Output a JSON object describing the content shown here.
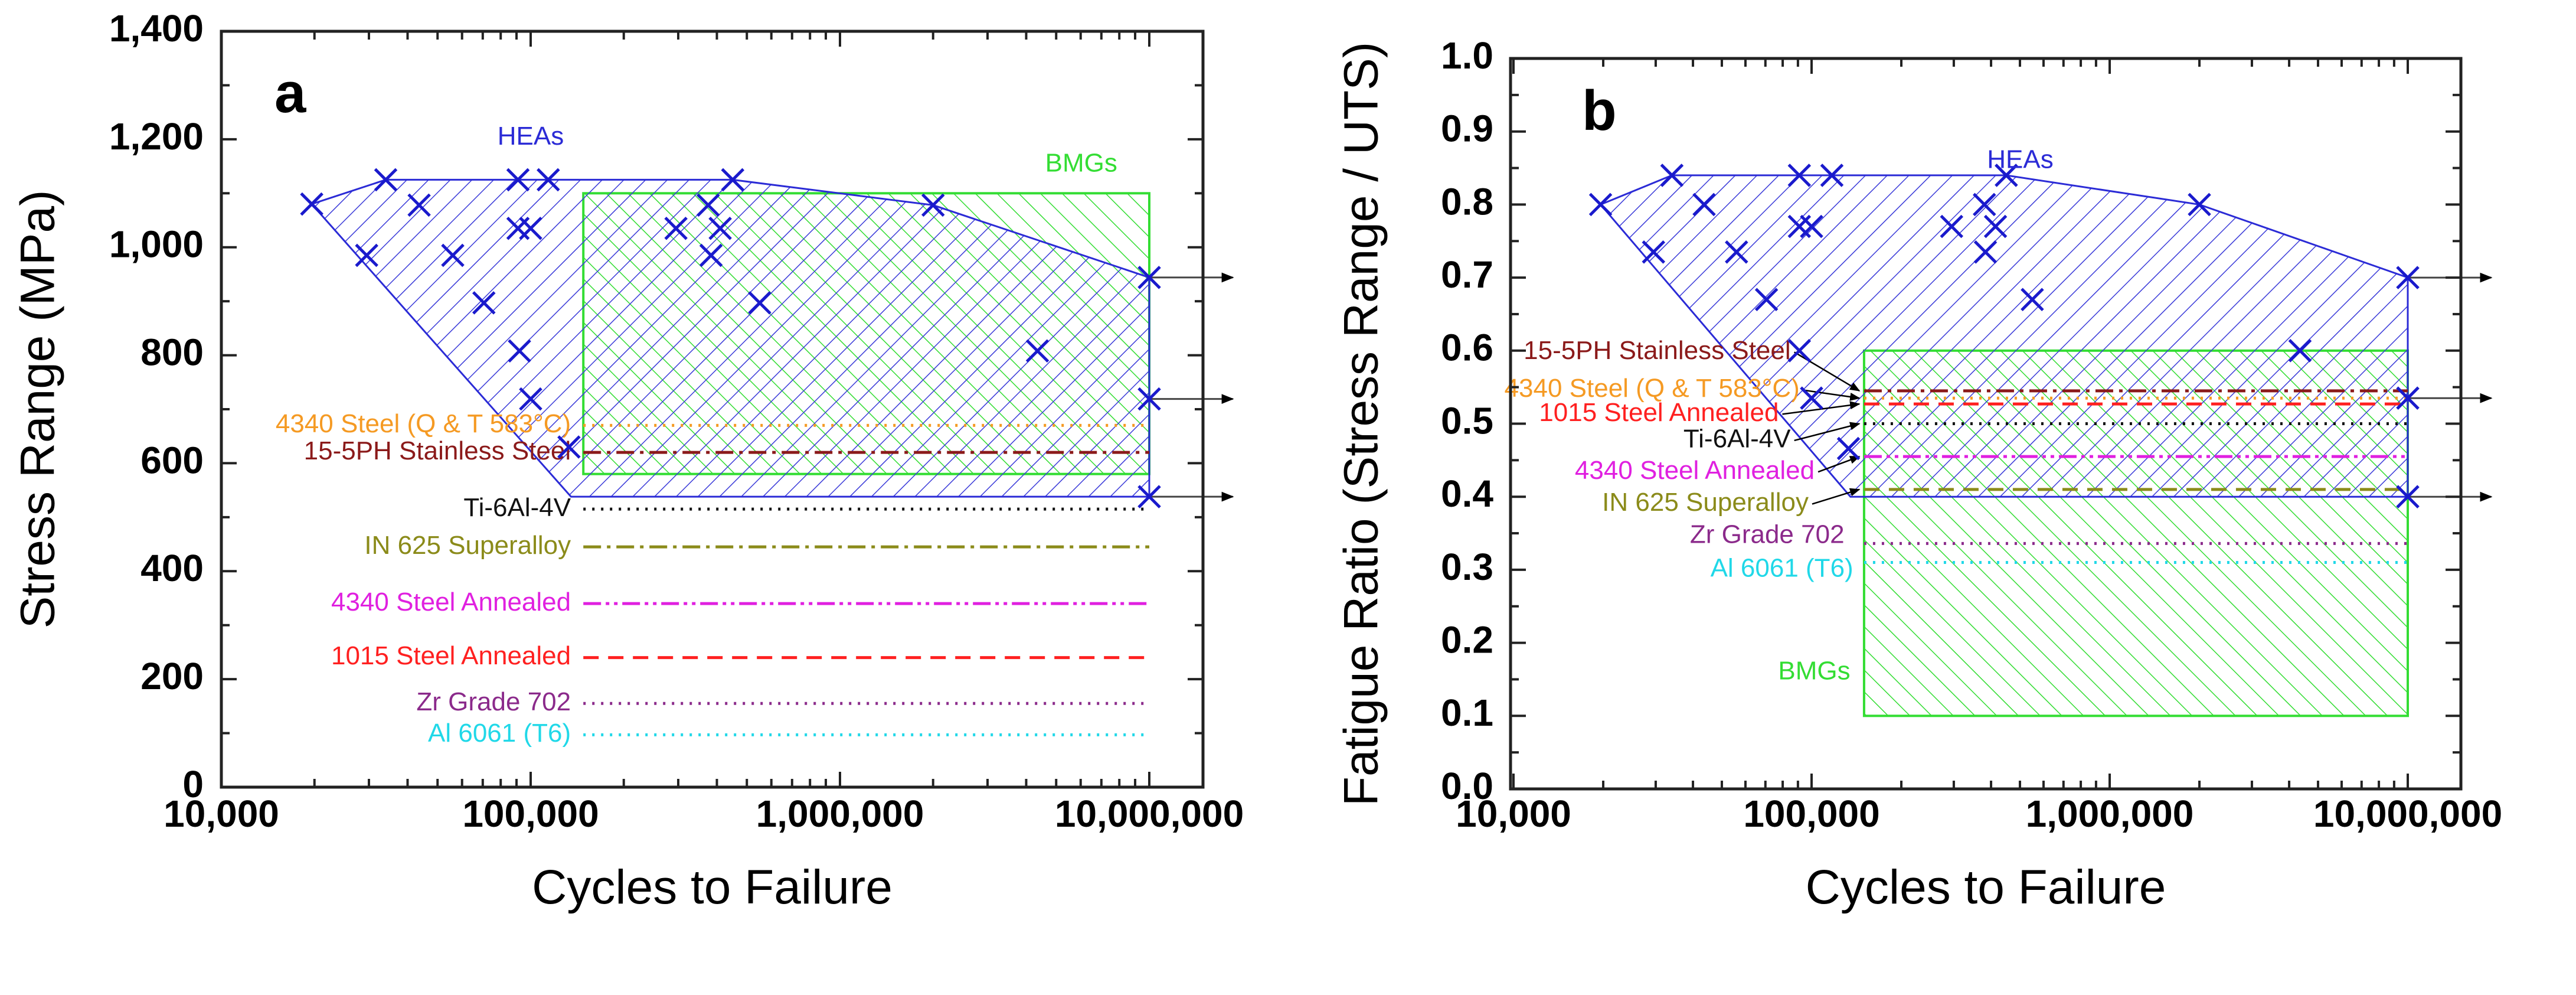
{
  "chart_data": [
    {
      "type": "scatter",
      "panel_label": "a",
      "title": "",
      "xlabel": "Cycles to Failure",
      "ylabel": "Stress Range (MPa)",
      "xscale": "log",
      "xlim": [
        10000,
        15500000
      ],
      "ylim": [
        0,
        1400
      ],
      "xticks": [
        {
          "value": 10000,
          "label": "10,000"
        },
        {
          "value": 100000,
          "label": "100,000"
        },
        {
          "value": 1000000,
          "label": "1,000,000"
        },
        {
          "value": 10000000,
          "label": "10,000,000"
        }
      ],
      "yticks": [
        {
          "value": 0,
          "label": "0"
        },
        {
          "value": 200,
          "label": "200"
        },
        {
          "value": 400,
          "label": "400"
        },
        {
          "value": 600,
          "label": "600"
        },
        {
          "value": 800,
          "label": "800"
        },
        {
          "value": 1000,
          "label": "1,000"
        },
        {
          "value": 1200,
          "label": "1,200"
        },
        {
          "value": 1400,
          "label": "1,400"
        }
      ],
      "hea_points": [
        [
          19600,
          1080
        ],
        [
          34000,
          1125
        ],
        [
          29500,
          985
        ],
        [
          43600,
          1078
        ],
        [
          56000,
          985
        ],
        [
          70600,
          897
        ],
        [
          91000,
          1125
        ],
        [
          114000,
          1125
        ],
        [
          91000,
          1035
        ],
        [
          100000,
          1035
        ],
        [
          92000,
          808
        ],
        [
          100000,
          719
        ],
        [
          133000,
          630
        ],
        [
          450000,
          1125
        ],
        [
          375000,
          1078
        ],
        [
          295000,
          1035
        ],
        [
          410000,
          1035
        ],
        [
          383000,
          985
        ],
        [
          550000,
          897
        ],
        [
          2000000,
          1078
        ],
        [
          4350000,
          808
        ],
        [
          10000000,
          944
        ],
        [
          10000000,
          719
        ],
        [
          10000000,
          538
        ]
      ],
      "hea_region": [
        [
          19600,
          1080
        ],
        [
          34000,
          1125
        ],
        [
          450000,
          1125
        ],
        [
          2000000,
          1078
        ],
        [
          10000000,
          944
        ],
        [
          10000000,
          538
        ],
        [
          135000,
          538
        ]
      ],
      "bmg_region": {
        "x": [
          148000,
          10000000
        ],
        "y": [
          580,
          1100
        ]
      },
      "runout_arrows": [
        944,
        719,
        538
      ],
      "reference_lines": [
        {
          "name": "4340 Steel (Q & T 583°C)",
          "value": 670,
          "color": "#f59a23",
          "style": "dotted"
        },
        {
          "name": "15-5PH Stainless Steel",
          "value": 620,
          "color": "#8b1a1a",
          "style": "dash-dot"
        },
        {
          "name": "Ti-6Al-4V",
          "value": 515,
          "color": "#111111",
          "style": "dotted"
        },
        {
          "name": "IN 625 Superalloy",
          "value": 445,
          "color": "#8b8b1a",
          "style": "dash-dot"
        },
        {
          "name": "4340 Steel Annealed",
          "value": 340,
          "color": "#e020e0",
          "style": "dash-dot-dot"
        },
        {
          "name": "1015 Steel Annealed",
          "value": 240,
          "color": "#ff2020",
          "style": "dash"
        },
        {
          "name": "Zr Grade 702",
          "value": 155,
          "color": "#8b2a8b",
          "style": "dotted"
        },
        {
          "name": "Al 6061 (T6)",
          "value": 97,
          "color": "#20d8e8",
          "style": "dotted"
        }
      ],
      "annotations": {
        "hea": "HEAs",
        "bmg": "BMGs"
      },
      "colors": {
        "hea": "#2b2bd6",
        "bmg": "#33dd33"
      }
    },
    {
      "type": "scatter",
      "panel_label": "b",
      "title": "",
      "xlabel": "Cycles to Failure",
      "ylabel": "Fatigue Ratio (Stress Range / UTS)",
      "xscale": "log",
      "xlim": [
        10000,
        15500000
      ],
      "ylim": [
        0,
        1.0
      ],
      "xticks": [
        {
          "value": 10000,
          "label": "10,000"
        },
        {
          "value": 100000,
          "label": "100,000"
        },
        {
          "value": 1000000,
          "label": "1,000,000"
        },
        {
          "value": 10000000,
          "label": "10,000,000"
        }
      ],
      "yticks": [
        {
          "value": 0,
          "label": "0.0"
        },
        {
          "value": 0.1,
          "label": "0.1"
        },
        {
          "value": 0.2,
          "label": "0.2"
        },
        {
          "value": 0.3,
          "label": "0.3"
        },
        {
          "value": 0.4,
          "label": "0.4"
        },
        {
          "value": 0.5,
          "label": "0.5"
        },
        {
          "value": 0.6,
          "label": "0.6"
        },
        {
          "value": 0.7,
          "label": "0.7"
        },
        {
          "value": 0.8,
          "label": "0.8"
        },
        {
          "value": 0.9,
          "label": "0.9"
        },
        {
          "value": 1.0,
          "label": "1.0"
        }
      ],
      "hea_points": [
        [
          19600,
          0.8
        ],
        [
          34000,
          0.84
        ],
        [
          43600,
          0.8
        ],
        [
          29500,
          0.735
        ],
        [
          56000,
          0.735
        ],
        [
          70600,
          0.67
        ],
        [
          91000,
          0.84
        ],
        [
          117000,
          0.84
        ],
        [
          91000,
          0.77
        ],
        [
          100000,
          0.77
        ],
        [
          91000,
          0.6
        ],
        [
          100000,
          0.535
        ],
        [
          133000,
          0.466
        ],
        [
          450000,
          0.84
        ],
        [
          380000,
          0.8
        ],
        [
          295000,
          0.77
        ],
        [
          414000,
          0.77
        ],
        [
          383000,
          0.735
        ],
        [
          550000,
          0.67
        ],
        [
          2000000,
          0.8
        ],
        [
          4350000,
          0.6
        ],
        [
          10000000,
          0.7
        ],
        [
          10000000,
          0.535
        ],
        [
          10000000,
          0.4
        ]
      ],
      "hea_region": [
        [
          19600,
          0.8
        ],
        [
          34000,
          0.84
        ],
        [
          450000,
          0.84
        ],
        [
          2000000,
          0.8
        ],
        [
          10000000,
          0.7
        ],
        [
          10000000,
          0.4
        ],
        [
          135000,
          0.4
        ]
      ],
      "bmg_region": {
        "x": [
          150000,
          10000000
        ],
        "y": [
          0.1,
          0.6
        ]
      },
      "runout_arrows": [
        0.7,
        0.535,
        0.4
      ],
      "reference_lines": [
        {
          "name": "15-5PH Stainless Steel",
          "value": 0.545,
          "color": "#8b1a1a",
          "style": "dash-dot"
        },
        {
          "name": "4340 Steel (Q & T 583°C)",
          "value": 0.535,
          "color": "#f59a23",
          "style": "dotted"
        },
        {
          "name": "1015 Steel Annealed",
          "value": 0.527,
          "color": "#ff2020",
          "style": "dash"
        },
        {
          "name": "Ti-6Al-4V",
          "value": 0.5,
          "color": "#111111",
          "style": "dotted"
        },
        {
          "name": "4340 Steel Annealed",
          "value": 0.455,
          "color": "#e020e0",
          "style": "dash-dot-dot"
        },
        {
          "name": "IN 625 Superalloy",
          "value": 0.41,
          "color": "#8b8b1a",
          "style": "dash"
        },
        {
          "name": "Zr Grade 702",
          "value": 0.336,
          "color": "#8b2a8b",
          "style": "dotted"
        },
        {
          "name": "Al 6061 (T6)",
          "value": 0.31,
          "color": "#20d8e8",
          "style": "dotted"
        }
      ],
      "annotations": {
        "hea": "HEAs",
        "bmg": "BMGs"
      },
      "colors": {
        "hea": "#2b2bd6",
        "bmg": "#33dd33"
      }
    }
  ]
}
